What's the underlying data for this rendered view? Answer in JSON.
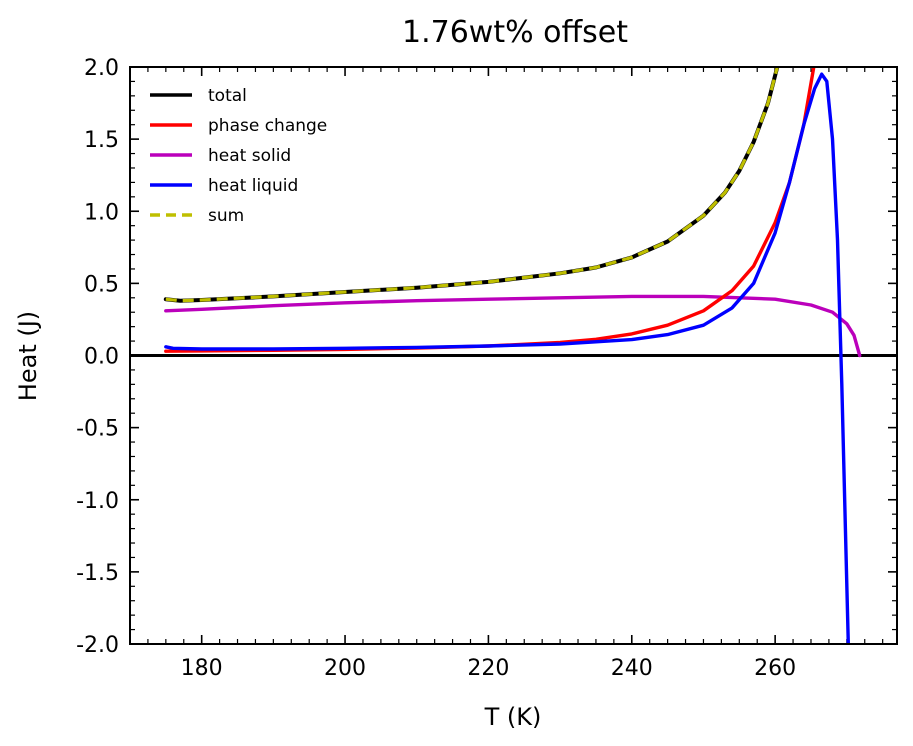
{
  "chart_data": {
    "type": "line",
    "title": "1.76wt% offset",
    "xlabel": "T (K)",
    "ylabel": "Heat (J)",
    "xlim": [
      170,
      277
    ],
    "ylim": [
      -2.0,
      2.0
    ],
    "xticks": [
      180,
      200,
      220,
      240,
      260
    ],
    "xtick_labels": [
      "180",
      "200",
      "220",
      "240",
      "260"
    ],
    "yticks": [
      2.0,
      1.5,
      1.0,
      0.5,
      0.0,
      -0.5,
      -1.0,
      -1.5,
      -2.0
    ],
    "ytick_labels": [
      "2.0",
      "1.5",
      "1.0",
      "0.5",
      "0.0",
      "-0.5",
      "-1.0",
      "-1.5",
      "-2.0"
    ],
    "legend_position": "top-left",
    "series": [
      {
        "name": "total",
        "color": "#000000",
        "style": "solid",
        "x": [
          175,
          177,
          180,
          190,
          200,
          210,
          220,
          230,
          235,
          240,
          245,
          250,
          253,
          255,
          257,
          259,
          260.3
        ],
        "y": [
          0.39,
          0.38,
          0.385,
          0.41,
          0.44,
          0.47,
          0.51,
          0.57,
          0.61,
          0.68,
          0.79,
          0.97,
          1.13,
          1.28,
          1.48,
          1.75,
          2.0
        ]
      },
      {
        "name": "phase change",
        "color": "#ff0000",
        "style": "solid",
        "x": [
          175,
          180,
          190,
          200,
          210,
          220,
          230,
          235,
          240,
          245,
          250,
          254,
          257,
          260,
          262,
          264,
          265.4
        ],
        "y": [
          0.03,
          0.032,
          0.036,
          0.042,
          0.052,
          0.066,
          0.09,
          0.112,
          0.15,
          0.21,
          0.31,
          0.45,
          0.62,
          0.92,
          1.2,
          1.6,
          2.0
        ]
      },
      {
        "name": "heat solid",
        "color": "#bb00bb",
        "style": "solid",
        "x": [
          175,
          180,
          190,
          200,
          210,
          220,
          230,
          240,
          250,
          260,
          265,
          268,
          270,
          271,
          271.8
        ],
        "y": [
          0.31,
          0.32,
          0.345,
          0.365,
          0.38,
          0.39,
          0.4,
          0.41,
          0.41,
          0.39,
          0.35,
          0.3,
          0.22,
          0.14,
          0.0
        ]
      },
      {
        "name": "heat liquid",
        "color": "#0000ff",
        "style": "solid",
        "x": [
          175,
          176,
          180,
          190,
          200,
          210,
          220,
          230,
          240,
          245,
          250,
          254,
          257,
          260,
          262,
          264,
          265.5,
          266.5,
          267.2,
          268,
          268.7,
          269.3,
          269.8,
          270.2
        ],
        "y": [
          0.06,
          0.05,
          0.045,
          0.045,
          0.05,
          0.056,
          0.066,
          0.08,
          0.11,
          0.145,
          0.21,
          0.33,
          0.5,
          0.85,
          1.2,
          1.6,
          1.85,
          1.95,
          1.9,
          1.5,
          0.8,
          -0.2,
          -1.2,
          -2.0
        ]
      },
      {
        "name": "sum",
        "color": "#bfbf00",
        "style": "dashed",
        "x": [
          175,
          177,
          180,
          190,
          200,
          210,
          220,
          230,
          235,
          240,
          245,
          250,
          253,
          255,
          257,
          259,
          260.3
        ],
        "y": [
          0.39,
          0.38,
          0.385,
          0.41,
          0.44,
          0.47,
          0.51,
          0.57,
          0.61,
          0.68,
          0.79,
          0.97,
          1.13,
          1.28,
          1.48,
          1.75,
          2.0
        ]
      }
    ]
  }
}
